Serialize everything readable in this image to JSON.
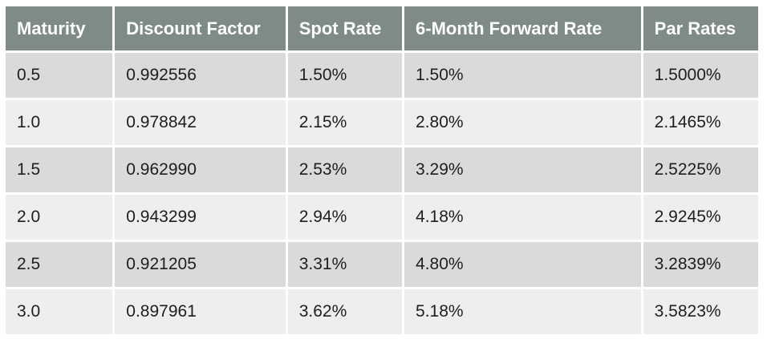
{
  "table": {
    "headers": [
      "Maturity",
      "Discount Factor",
      "Spot Rate",
      "6-Month Forward Rate",
      "Par Rates"
    ],
    "rows": [
      [
        "0.5",
        "0.992556",
        "1.50%",
        "1.50%",
        "1.5000%"
      ],
      [
        "1.0",
        "0.978842",
        "2.15%",
        "2.80%",
        "2.1465%"
      ],
      [
        "1.5",
        "0.962990",
        "2.53%",
        "3.29%",
        "2.5225%"
      ],
      [
        "2.0",
        "0.943299",
        "2.94%",
        "4.18%",
        "2.9245%"
      ],
      [
        "2.5",
        "0.921205",
        "3.31%",
        "4.80%",
        "3.2839%"
      ],
      [
        "3.0",
        "0.897961",
        "3.62%",
        "5.18%",
        "3.5823%"
      ]
    ]
  },
  "colors": {
    "header_bg": "#7f8c86",
    "header_text": "#ffffff",
    "row_odd_bg": "#d8dbd9",
    "row_even_bg": "#edefee"
  }
}
